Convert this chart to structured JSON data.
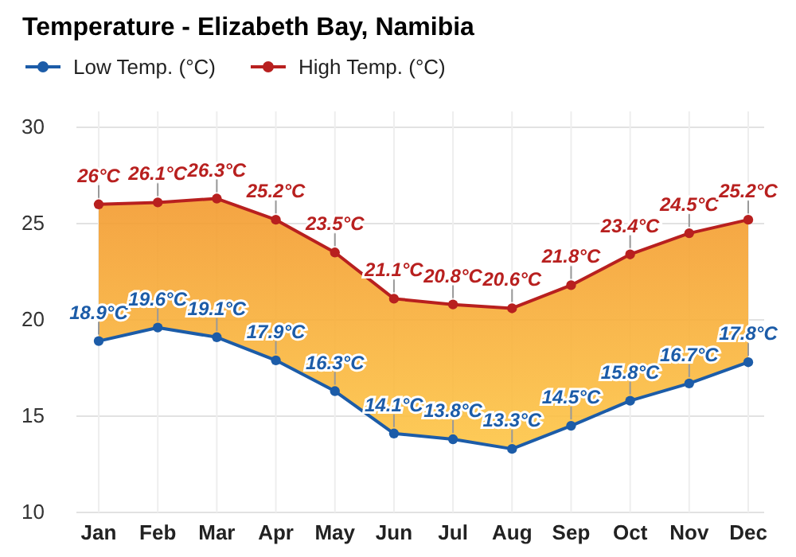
{
  "chart_data": {
    "type": "line",
    "title": "Temperature - Elizabeth Bay, Namibia",
    "categories": [
      "Jan",
      "Feb",
      "Mar",
      "Apr",
      "May",
      "Jun",
      "Jul",
      "Aug",
      "Sep",
      "Oct",
      "Nov",
      "Dec"
    ],
    "series": [
      {
        "name": "Low Temp. (°C)",
        "color": "#1c5ca8",
        "values": [
          18.9,
          19.6,
          19.1,
          17.9,
          16.3,
          14.1,
          13.8,
          13.3,
          14.5,
          15.8,
          16.7,
          17.8
        ],
        "value_labels": [
          "18.9°C",
          "19.6°C",
          "19.1°C",
          "17.9°C",
          "16.3°C",
          "14.1°C",
          "13.8°C",
          "13.3°C",
          "14.5°C",
          "15.8°C",
          "16.7°C",
          "17.8°C"
        ]
      },
      {
        "name": "High Temp. (°C)",
        "color": "#b8201f",
        "values": [
          26,
          26.1,
          26.3,
          25.2,
          23.5,
          21.1,
          20.8,
          20.6,
          21.8,
          23.4,
          24.5,
          25.2
        ],
        "value_labels": [
          "26°C",
          "26.1°C",
          "26.3°C",
          "25.2°C",
          "23.5°C",
          "21.1°C",
          "20.8°C",
          "20.6°C",
          "21.8°C",
          "23.4°C",
          "24.5°C",
          "25.2°C"
        ]
      }
    ],
    "ylim": [
      10,
      30
    ],
    "yticks": [
      10,
      15,
      20,
      25,
      30
    ],
    "grid": true,
    "legend": "top left",
    "marker": "circle",
    "line_style": "solid"
  }
}
